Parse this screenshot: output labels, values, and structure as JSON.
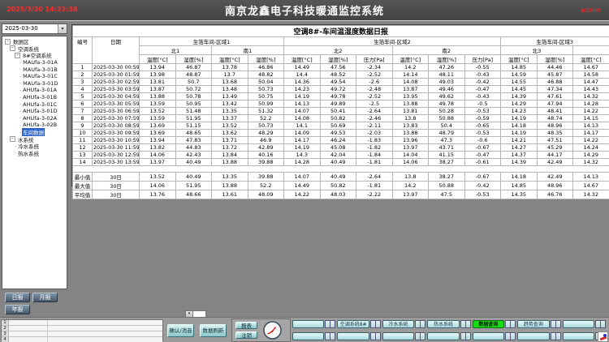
{
  "colors": {
    "topbar": "#434343",
    "alert_red": "#ff2a2a",
    "tree_selected": "#2f64c8",
    "teal_button": "#8bc7c9",
    "active_green": "#14e014",
    "nav_cyan": "#a6dadd"
  },
  "header": {
    "datetime": "2025/3/30 14:33:38",
    "title": "南京龙鑫电子科技暖通监控系统",
    "user": "admin"
  },
  "sidebar": {
    "date_value": "2025-03-30",
    "tree": [
      {
        "label": "数据区",
        "level": 0,
        "box": true
      },
      {
        "label": "空调系统",
        "level": 1,
        "box": true
      },
      {
        "label": "8#空调系统",
        "level": 2,
        "box": true
      },
      {
        "label": "MAUfa-3-01A",
        "level": 3
      },
      {
        "label": "MAUfa-3-01B",
        "level": 3
      },
      {
        "label": "MAUfa-3-01C",
        "level": 3
      },
      {
        "label": "MAUfa-3-01D",
        "level": 3
      },
      {
        "label": "AHUfa-3-01A",
        "level": 3
      },
      {
        "label": "AHUfa-3-01B",
        "level": 3
      },
      {
        "label": "AHUfa-3-01C",
        "level": 3
      },
      {
        "label": "AHUfa-3-01D",
        "level": 3
      },
      {
        "label": "AHUfa-3-02A",
        "level": 3
      },
      {
        "label": "AHUfa-3-02B",
        "level": 3
      },
      {
        "label": "车间数据",
        "level": 3,
        "selected": true
      },
      {
        "label": "水系统",
        "level": 1,
        "box": true
      },
      {
        "label": "冷水系统",
        "level": 2
      },
      {
        "label": "热水系统",
        "level": 2
      }
    ],
    "buttons": {
      "daily": "日报",
      "monthly": "月报",
      "yearly": "年报"
    }
  },
  "report": {
    "title": "空调8#-车间温湿度数据日报",
    "columns": {
      "no": "编号",
      "date": "日期",
      "groups": [
        {
          "label": "生箔车间-区域1",
          "span": 4
        },
        {
          "label": "生箔车间-区域2",
          "span": 6
        },
        {
          "label": "生箔车间-区域3",
          "span": 3
        }
      ],
      "subgroups": [
        {
          "label": "北1",
          "span": 2
        },
        {
          "label": "南1",
          "span": 2
        },
        {
          "label": "北2",
          "span": 3
        },
        {
          "label": "南2",
          "span": 3
        },
        {
          "label": "北3",
          "span": 2
        },
        {
          "label": "",
          "span": 1
        }
      ],
      "units": [
        "温度[°C]",
        "湿度[%]",
        "温度[°C]",
        "湿度[%]",
        "温度[°C]",
        "湿度[%]",
        "压力[Pa]",
        "温度[°C]",
        "湿度[%]",
        "压力[Pa]",
        "温度[°C]",
        "湿度[%]",
        "温度[°C]"
      ]
    },
    "rows": [
      [
        "1",
        "2025-03-30 00:59",
        "13.94",
        "46.87",
        "13.78",
        "46.86",
        "14.49",
        "47.56",
        "-2.34",
        "14.2",
        "47.26",
        "-0.55",
        "14.85",
        "44.46",
        "14.67"
      ],
      [
        "2",
        "2025-03-30 01:59",
        "13.98",
        "48.87",
        "13.7",
        "48.82",
        "14.4",
        "48.52",
        "-2.52",
        "14.14",
        "48.11",
        "-0.43",
        "14.59",
        "45.87",
        "14.58"
      ],
      [
        "3",
        "2025-03-30 02:59",
        "13.81",
        "50.7",
        "13.68",
        "50.04",
        "14.36",
        "49.54",
        "-2.6",
        "14.08",
        "49.03",
        "-0.42",
        "14.55",
        "46.88",
        "14.47"
      ],
      [
        "4",
        "2025-03-30 03:59",
        "13.87",
        "50.72",
        "13.48",
        "50.73",
        "14.23",
        "49.72",
        "-2.48",
        "13.87",
        "49.46",
        "-0.47",
        "14.45",
        "47.34",
        "14.43"
      ],
      [
        "5",
        "2025-03-30 04:59",
        "13.88",
        "50.78",
        "13.49",
        "50.75",
        "14.19",
        "49.78",
        "-2.52",
        "13.95",
        "49.62",
        "-0.43",
        "14.39",
        "47.61",
        "14.32"
      ],
      [
        "6",
        "2025-03-30 05:59",
        "13.59",
        "50.95",
        "13.42",
        "50.99",
        "14.13",
        "49.89",
        "-2.5",
        "13.88",
        "49.78",
        "-0.5",
        "14.29",
        "47.94",
        "14.28"
      ],
      [
        "7",
        "2025-03-30 06:59",
        "13.52",
        "51.48",
        "13.35",
        "51.32",
        "14.07",
        "50.41",
        "-2.64",
        "13.81",
        "50.28",
        "-0.53",
        "14.23",
        "48.41",
        "14.22"
      ],
      [
        "8",
        "2025-03-30 07:59",
        "13.59",
        "51.95",
        "13.37",
        "52.2",
        "14.08",
        "50.82",
        "-2.46",
        "13.8",
        "50.88",
        "-0.59",
        "14.19",
        "48.74",
        "14.15"
      ],
      [
        "9",
        "2025-03-30 08:59",
        "13.69",
        "51.15",
        "13.52",
        "50.73",
        "14.1",
        "50.69",
        "-2.11",
        "13.83",
        "50.4",
        "-0.65",
        "14.18",
        "48.96",
        "14.13"
      ],
      [
        "10",
        "2025-03-30 09:59",
        "13.69",
        "48.65",
        "13.62",
        "48.29",
        "14.09",
        "49.53",
        "-2.03",
        "13.88",
        "48.79",
        "-0.53",
        "14.19",
        "48.35",
        "14.17"
      ],
      [
        "11",
        "2025-03-30 10:59",
        "13.94",
        "47.83",
        "13.71",
        "46.9",
        "14.17",
        "46.24",
        "-1.83",
        "13.96",
        "47.3",
        "-0.6",
        "14.21",
        "47.51",
        "14.22"
      ],
      [
        "12",
        "2025-03-30 11:59",
        "13.82",
        "44.83",
        "13.72",
        "42.89",
        "14.19",
        "45.08",
        "-1.82",
        "13.97",
        "43.71",
        "-0.67",
        "14.27",
        "45.29",
        "14.24"
      ],
      [
        "13",
        "2025-03-30 12:59",
        "14.06",
        "42.43",
        "13.84",
        "40.16",
        "14.3",
        "42.04",
        "-1.84",
        "14.04",
        "41.15",
        "-0.47",
        "14.37",
        "44.17",
        "14.29"
      ],
      [
        "14",
        "2025-03-30 13:59",
        "13.97",
        "40.49",
        "13.88",
        "39.88",
        "14.28",
        "40.49",
        "-1.81",
        "14.06",
        "38.27",
        "-0.61",
        "14.39",
        "42.49",
        "14.32"
      ]
    ],
    "summary": [
      [
        "最小值",
        "30日",
        "13.52",
        "40.49",
        "13.35",
        "39.88",
        "14.07",
        "40.49",
        "-2.64",
        "13.8",
        "38.27",
        "-0.67",
        "14.18",
        "42.49",
        "14.13"
      ],
      [
        "最大值",
        "30日",
        "14.06",
        "51.95",
        "13.88",
        "52.2",
        "14.49",
        "50.82",
        "-1.81",
        "14.2",
        "50.88",
        "-0.42",
        "14.85",
        "48.96",
        "14.67"
      ],
      [
        "平均值",
        "30日",
        "13.76",
        "48.66",
        "13.61",
        "48.09",
        "14.22",
        "48.03",
        "-2.22",
        "13.97",
        "47.5",
        "-0.53",
        "14.35",
        "46.76",
        "14.32"
      ]
    ]
  },
  "bottom": {
    "alarm_rows": [
      "1",
      "2",
      "3",
      "4"
    ],
    "confirm_label": "确认/消音",
    "refresh_label": "数据刷新",
    "report_label": "报表",
    "logout_label": "注销",
    "nav_rows": [
      [
        {
          "label": ""
        },
        {
          "label": "空调系统8#"
        },
        {
          "label": "冷水系统"
        },
        {
          "label": "热水系统"
        },
        {
          "label": "数据查询",
          "active": true
        },
        {
          "label": "趋势查询"
        },
        {
          "label": ""
        }
      ],
      [
        {
          "label": ""
        },
        {
          "label": ""
        },
        {
          "label": ""
        },
        {
          "label": ""
        },
        {
          "label": ""
        },
        {
          "label": ""
        },
        {
          "label": ""
        }
      ]
    ]
  }
}
